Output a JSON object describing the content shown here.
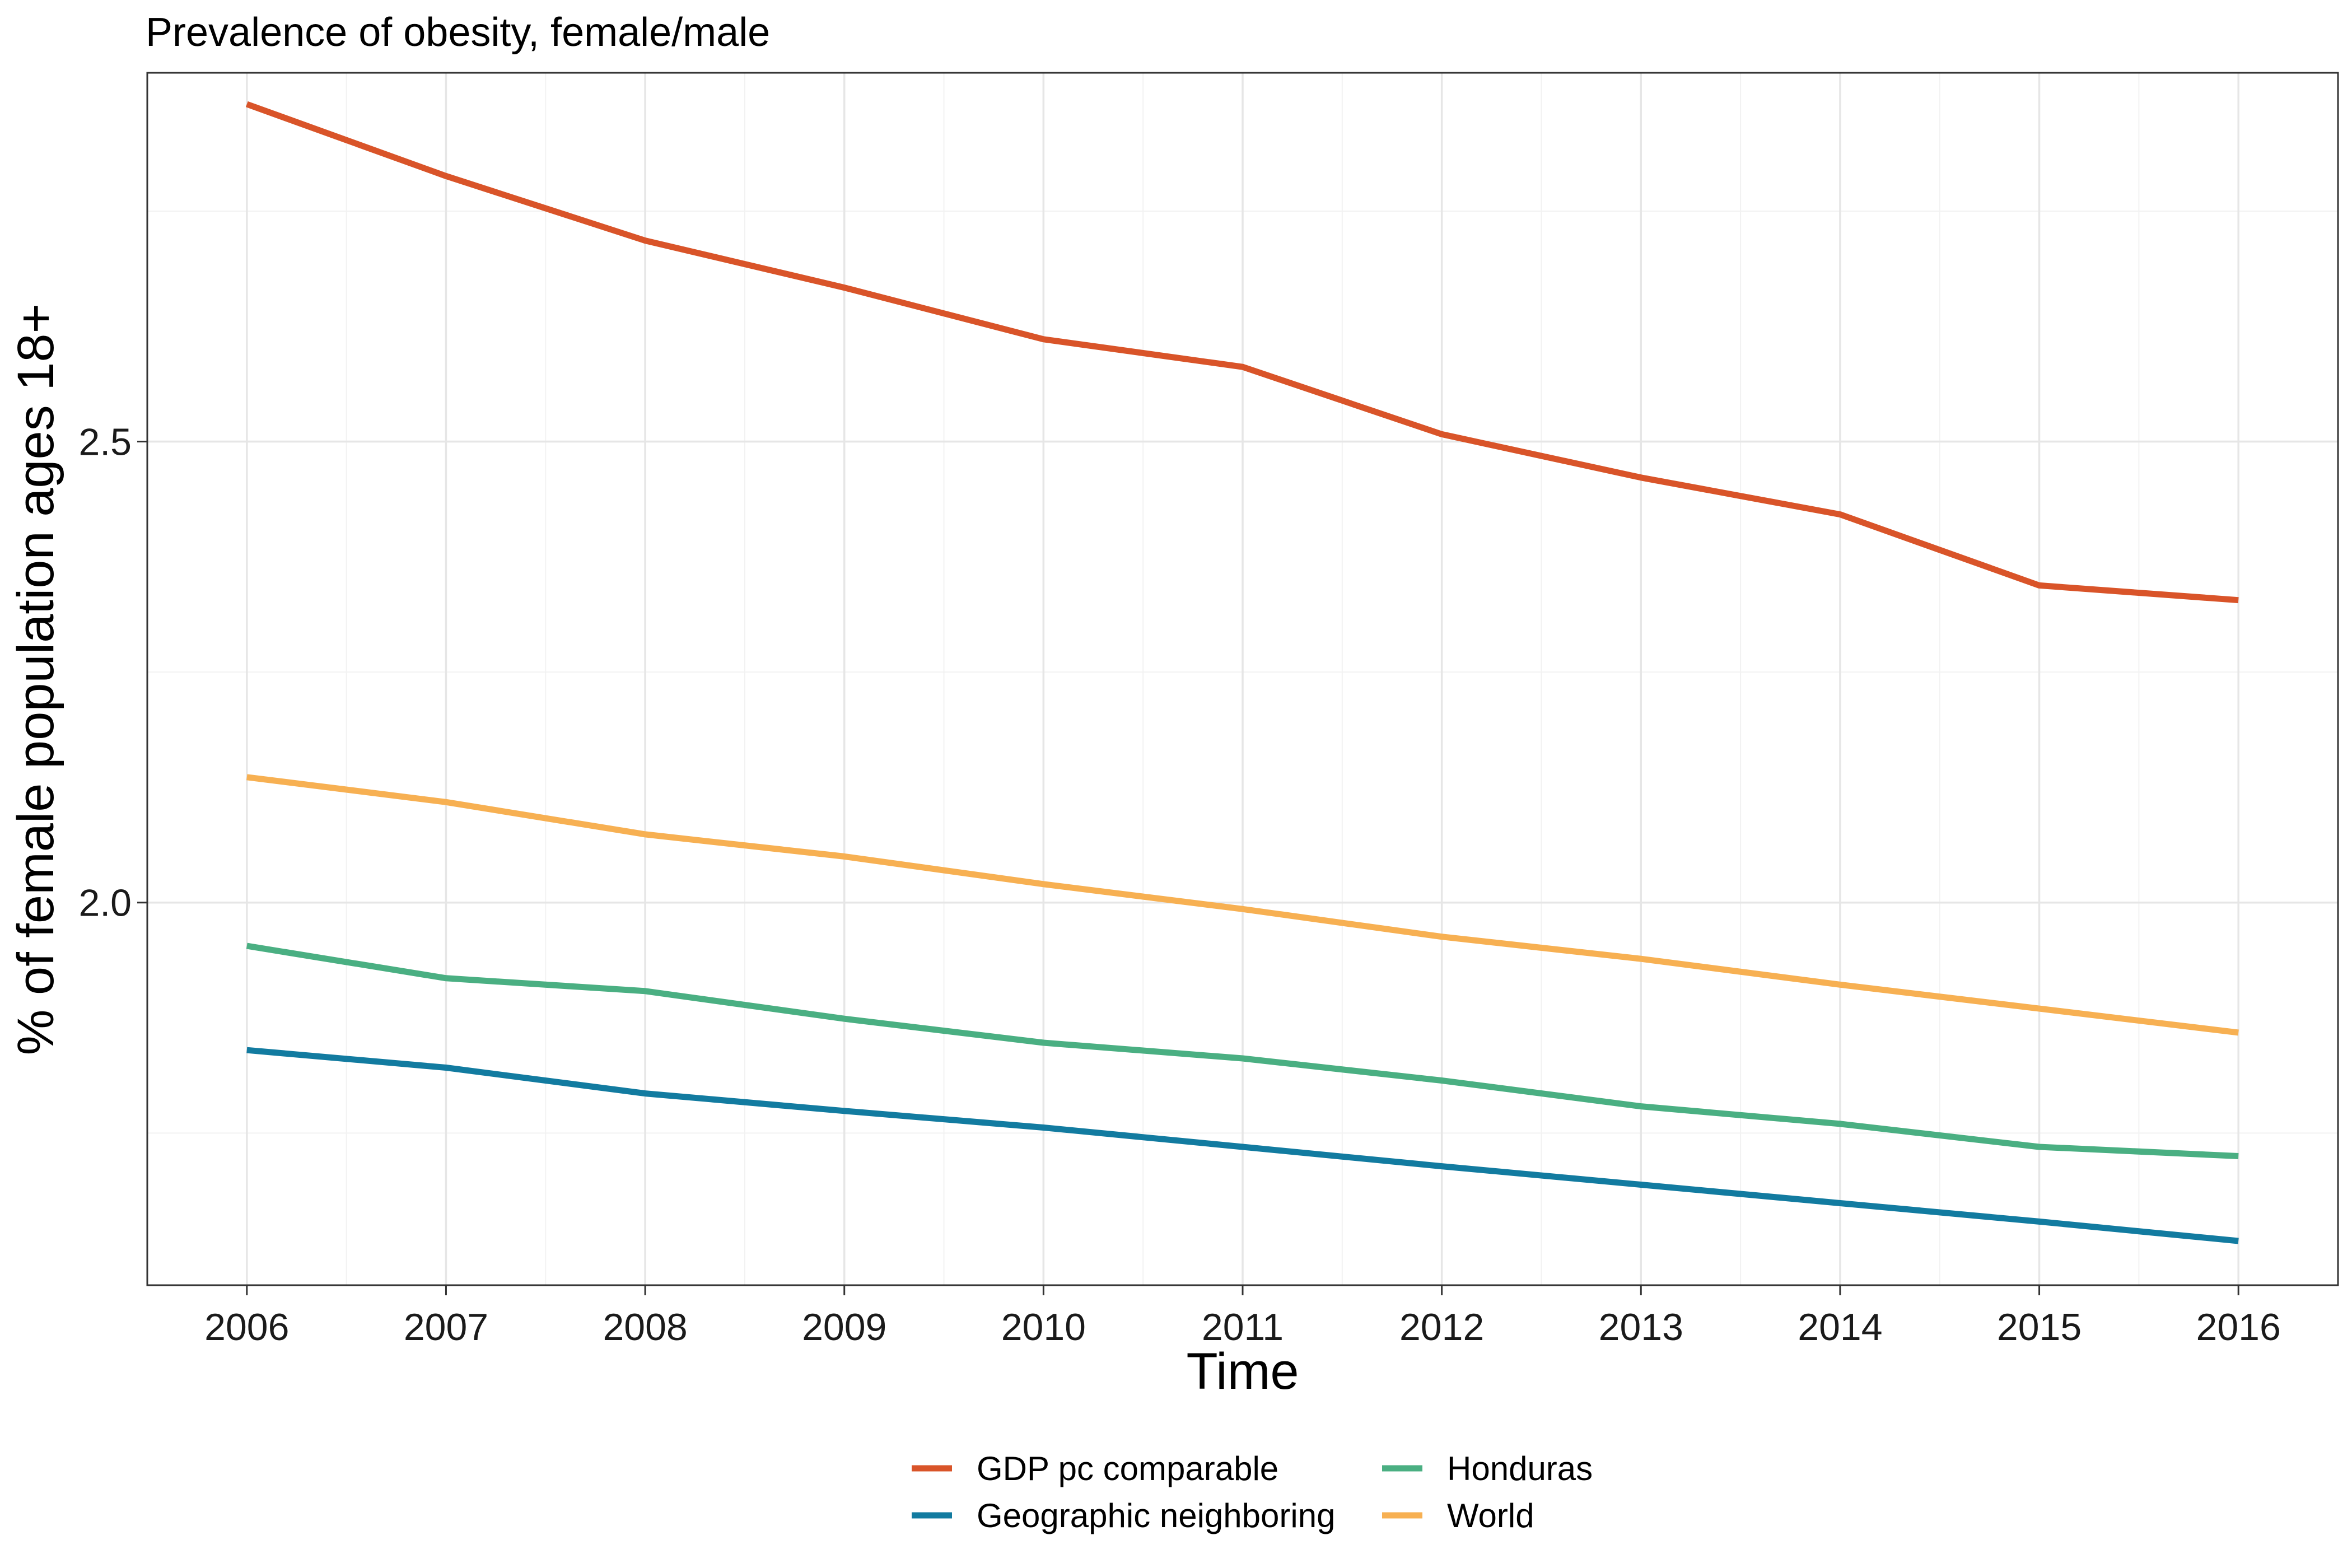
{
  "chart_data": {
    "type": "line",
    "title": "Prevalence of obesity, female/male",
    "xlabel": "Time",
    "ylabel": "% of female population ages 18+",
    "x": [
      2006,
      2007,
      2008,
      2009,
      2010,
      2011,
      2012,
      2013,
      2014,
      2015,
      2016
    ],
    "xlim": [
      2005.5,
      2016.5
    ],
    "ylim": [
      1.585,
      2.9
    ],
    "y_major_ticks": [
      2.0,
      2.5
    ],
    "y_tick_labels": [
      "2.0",
      "2.5"
    ],
    "y_minor_ticks": [
      1.75,
      2.25,
      2.75
    ],
    "x_tick_labels": [
      "2006",
      "2007",
      "2008",
      "2009",
      "2010",
      "2011",
      "2012",
      "2013",
      "2014",
      "2015",
      "2016"
    ],
    "grid": true,
    "legend_position": "bottom",
    "series": [
      {
        "name": "GDP pc comparable",
        "color": "#D95429",
        "values": [
          2.866,
          2.788,
          2.718,
          2.667,
          2.611,
          2.581,
          2.508,
          2.461,
          2.421,
          2.344,
          2.328
        ]
      },
      {
        "name": "Geographic neighboring",
        "color": "#127BA0",
        "values": [
          1.84,
          1.821,
          1.793,
          1.774,
          1.756,
          1.735,
          1.714,
          1.694,
          1.674,
          1.654,
          1.633
        ]
      },
      {
        "name": "Honduras",
        "color": "#4AAF82",
        "values": [
          1.953,
          1.918,
          1.904,
          1.874,
          1.848,
          1.831,
          1.807,
          1.779,
          1.76,
          1.735,
          1.725
        ]
      },
      {
        "name": "World",
        "color": "#F7B052",
        "values": [
          2.136,
          2.109,
          2.074,
          2.05,
          2.02,
          1.993,
          1.963,
          1.939,
          1.911,
          1.885,
          1.859
        ]
      }
    ]
  }
}
